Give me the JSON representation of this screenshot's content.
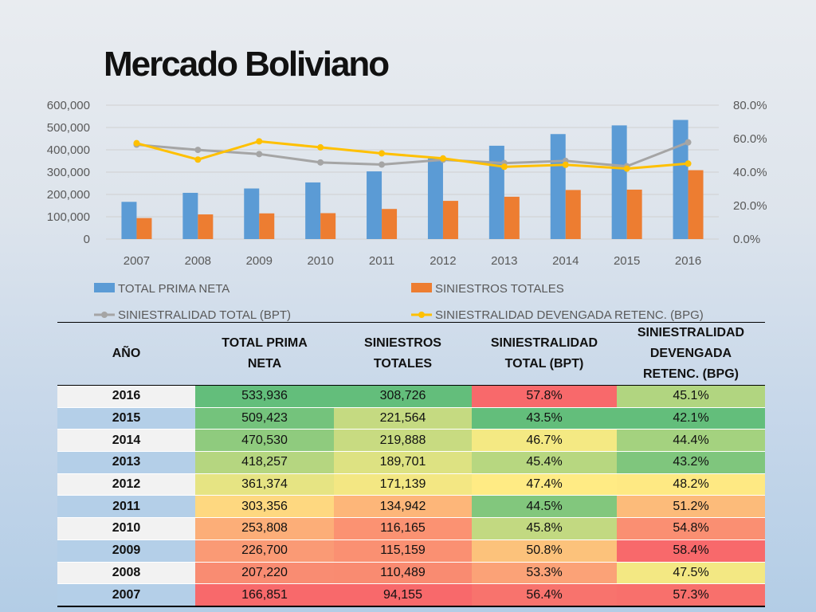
{
  "title": "Mercado Boliviano",
  "chart_data": {
    "type": "bar",
    "categories": [
      "2007",
      "2008",
      "2009",
      "2010",
      "2011",
      "2012",
      "2013",
      "2014",
      "2015",
      "2016"
    ],
    "left_axis": {
      "ylim": [
        0,
        600000
      ],
      "ticks": [
        "0",
        "100,000",
        "200,000",
        "300,000",
        "400,000",
        "500,000",
        "600,000"
      ]
    },
    "right_axis": {
      "ylim": [
        0,
        80
      ],
      "ticks": [
        "0.0%",
        "20.0%",
        "40.0%",
        "60.0%",
        "80.0%"
      ]
    },
    "series": [
      {
        "name": "TOTAL PRIMA NETA",
        "kind": "bar",
        "axis": "left",
        "color": "#5b9bd5",
        "values": [
          166851,
          207220,
          226700,
          253808,
          303356,
          361374,
          418257,
          470530,
          509423,
          533936
        ]
      },
      {
        "name": "SINIESTROS TOTALES",
        "kind": "bar",
        "axis": "left",
        "color": "#ed7d31",
        "values": [
          94155,
          110489,
          115159,
          116165,
          134942,
          171139,
          189701,
          219888,
          221564,
          308726
        ]
      },
      {
        "name": "SINIESTRALIDAD TOTAL (BPT)",
        "kind": "line",
        "axis": "right",
        "color": "#a5a5a5",
        "values": [
          56.4,
          53.3,
          50.8,
          45.8,
          44.5,
          47.4,
          45.4,
          46.7,
          43.5,
          57.8
        ]
      },
      {
        "name": "SINIESTRALIDAD DEVENGADA RETENC. (BPG)",
        "kind": "line",
        "axis": "right",
        "color": "#ffc000",
        "values": [
          57.3,
          47.5,
          58.4,
          54.8,
          51.2,
          48.2,
          43.2,
          44.4,
          42.1,
          45.1
        ]
      }
    ],
    "grid": true,
    "legend_position": "bottom"
  },
  "table": {
    "headers": [
      "AÑO",
      "TOTAL PRIMA NETA",
      "SINIESTROS TOTALES",
      "SINIESTRALIDAD TOTAL (BPT)",
      "SINIESTRALIDAD DEVENGADA RETENC. (BPG)"
    ],
    "rows": [
      {
        "year": "2016",
        "prima": "533,936",
        "siniestros": "308,726",
        "bpt": "57.8%",
        "bpg": "45.1%",
        "colors": [
          "#63be7b",
          "#63be7b",
          "#f8696b",
          "#b1d580"
        ]
      },
      {
        "year": "2015",
        "prima": "509,423",
        "siniestros": "221,564",
        "bpt": "43.5%",
        "bpg": "42.1%",
        "colors": [
          "#74c37c",
          "#c5da81",
          "#63be7b",
          "#63be7b"
        ]
      },
      {
        "year": "2014",
        "prima": "470,530",
        "siniestros": "219,888",
        "bpt": "46.7%",
        "bpg": "44.4%",
        "colors": [
          "#8fcb7e",
          "#c8db81",
          "#f4e983",
          "#a4d27f"
        ]
      },
      {
        "year": "2013",
        "prima": "418,257",
        "siniestros": "189,701",
        "bpt": "45.4%",
        "bpg": "43.2%",
        "colors": [
          "#b5d680",
          "#dde282",
          "#b7d780",
          "#7fc67d"
        ]
      },
      {
        "year": "2012",
        "prima": "361,374",
        "siniestros": "171,139",
        "bpt": "47.4%",
        "bpg": "48.2%",
        "colors": [
          "#e6e483",
          "#f3e783",
          "#ffeb84",
          "#fee983"
        ]
      },
      {
        "year": "2011",
        "prima": "303,356",
        "siniestros": "134,942",
        "bpt": "44.5%",
        "bpg": "51.2%",
        "colors": [
          "#fed880",
          "#fdb679",
          "#82c77d",
          "#fcbb7a"
        ]
      },
      {
        "year": "2010",
        "prima": "253,808",
        "siniestros": "116,165",
        "bpt": "45.8%",
        "bpg": "54.8%",
        "colors": [
          "#fcae78",
          "#fb9272",
          "#c2d981",
          "#fa8f72"
        ]
      },
      {
        "year": "2009",
        "prima": "226,700",
        "siniestros": "115,159",
        "bpt": "50.8%",
        "bpg": "58.4%",
        "colors": [
          "#fa9a75",
          "#fa9072",
          "#fcc27b",
          "#f8696b"
        ]
      },
      {
        "year": "2008",
        "prima": "207,220",
        "siniestros": "110,489",
        "bpt": "53.3%",
        "bpg": "47.5%",
        "colors": [
          "#f98c72",
          "#f98b71",
          "#fba277",
          "#f3e883"
        ]
      },
      {
        "year": "2007",
        "prima": "166,851",
        "siniestros": "94,155",
        "bpt": "56.4%",
        "bpg": "57.3%",
        "colors": [
          "#f8696b",
          "#f8696b",
          "#f8736d",
          "#f8706c"
        ]
      }
    ],
    "year_bg_light": "#f2f2f2",
    "year_bg_blue": "#b4cfe8"
  }
}
